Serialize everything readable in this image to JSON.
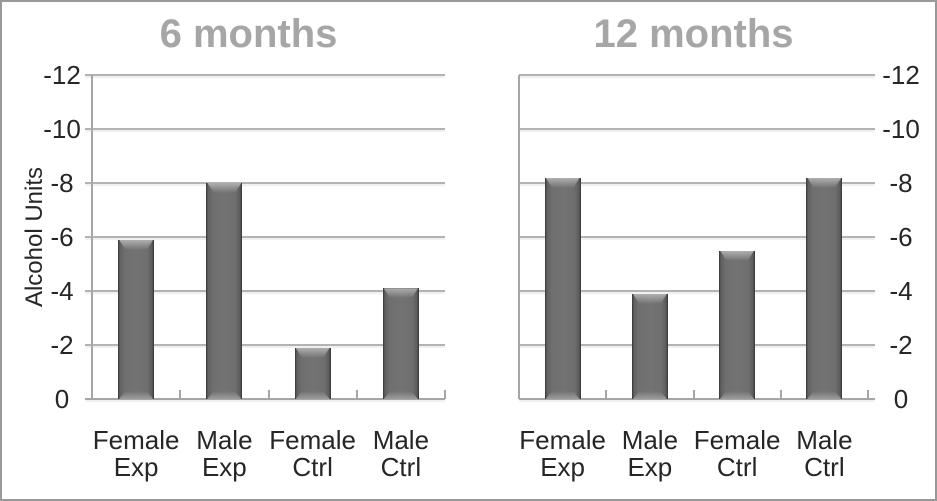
{
  "figure": {
    "kind": "dual-panel bar chart image"
  },
  "colors": {
    "background": "#ffffff",
    "border": "#999999",
    "title": "#a6a6a6",
    "gridline": "#b3b3b3",
    "axis": "#a6a6a6",
    "text": "#262626",
    "bar_mid": "#737373",
    "bar_edge": "#3c3c3c",
    "bar_highlight": "#b0b0b0"
  },
  "chart_data": [
    {
      "type": "bar",
      "title": "6 months",
      "xlabel": "",
      "ylabel": "Alcohol Units",
      "y_axis_side": "left",
      "categories": [
        "Female\nExp",
        "Male\nExp",
        "Female\nCtrl",
        "Male\nCtrl"
      ],
      "values": [
        -5.9,
        -8.0,
        -1.9,
        -4.1
      ],
      "ylim": [
        0,
        -12
      ],
      "yticks": [
        -12,
        -10,
        -8,
        -6,
        -4,
        -2,
        0
      ],
      "axis_reversed": true,
      "grid": true,
      "legend": "none"
    },
    {
      "type": "bar",
      "title": "12 months",
      "xlabel": "",
      "ylabel": "",
      "y_axis_side": "right",
      "categories": [
        "Female\nExp",
        "Male\nExp",
        "Female\nCtrl",
        "Male\nCtrl"
      ],
      "values": [
        -8.2,
        -3.9,
        -5.5,
        -8.2
      ],
      "ylim": [
        0,
        -12
      ],
      "yticks": [
        -12,
        -10,
        -8,
        -6,
        -4,
        -2,
        0
      ],
      "axis_reversed": true,
      "grid": true,
      "legend": "none"
    }
  ]
}
